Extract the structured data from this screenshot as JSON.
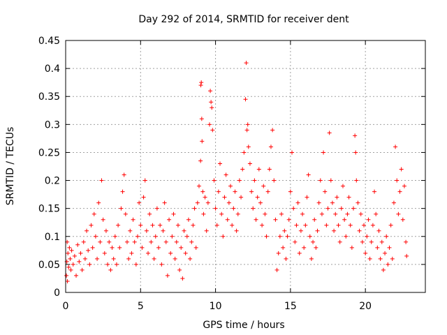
{
  "chart_data": {
    "type": "scatter",
    "title": "Day 292 of 2014, SRMTID for receiver dent",
    "xlabel": "GPS time / hours",
    "ylabel": "SRMTID / TECUs",
    "xlim": [
      0,
      24
    ],
    "ylim": [
      0,
      0.45
    ],
    "xticks": [
      0,
      5,
      10,
      15,
      20
    ],
    "xtick_labels": [
      "0",
      "5",
      "10",
      "15",
      "20"
    ],
    "yticks": [
      0,
      0.05,
      0.1,
      0.15,
      0.2,
      0.25,
      0.3,
      0.35,
      0.4,
      0.45
    ],
    "ytick_labels": [
      "0",
      "0.05",
      "0.1",
      "0.15",
      "0.2",
      "0.25",
      "0.3",
      "0.35",
      "0.4",
      "0.45"
    ],
    "grid": true,
    "marker": "+",
    "color": "#ff0000",
    "series": [
      {
        "name": "SRMTID",
        "points": [
          [
            0.05,
            0.03
          ],
          [
            0.08,
            0.055
          ],
          [
            0.1,
            0.09
          ],
          [
            0.12,
            0.02
          ],
          [
            0.15,
            0.07
          ],
          [
            0.2,
            0.045
          ],
          [
            0.25,
            0.08
          ],
          [
            0.3,
            0.06
          ],
          [
            0.35,
            0.04
          ],
          [
            0.4,
            0.075
          ],
          [
            0.5,
            0.05
          ],
          [
            0.6,
            0.065
          ],
          [
            0.7,
            0.03
          ],
          [
            0.8,
            0.085
          ],
          [
            0.9,
            0.055
          ],
          [
            1.0,
            0.07
          ],
          [
            1.1,
            0.04
          ],
          [
            1.2,
            0.09
          ],
          [
            1.3,
            0.06
          ],
          [
            1.4,
            0.11
          ],
          [
            1.5,
            0.075
          ],
          [
            1.6,
            0.05
          ],
          [
            1.7,
            0.12
          ],
          [
            1.8,
            0.08
          ],
          [
            1.9,
            0.14
          ],
          [
            2.0,
            0.1
          ],
          [
            2.1,
            0.06
          ],
          [
            2.2,
            0.16
          ],
          [
            2.3,
            0.09
          ],
          [
            2.4,
            0.2
          ],
          [
            2.5,
            0.13
          ],
          [
            2.6,
            0.07
          ],
          [
            2.7,
            0.11
          ],
          [
            2.8,
            0.05
          ],
          [
            2.9,
            0.09
          ],
          [
            3.0,
            0.04
          ],
          [
            3.1,
            0.08
          ],
          [
            3.2,
            0.06
          ],
          [
            3.3,
            0.1
          ],
          [
            3.4,
            0.05
          ],
          [
            3.5,
            0.12
          ],
          [
            3.6,
            0.08
          ],
          [
            3.7,
            0.15
          ],
          [
            3.8,
            0.18
          ],
          [
            3.9,
            0.21
          ],
          [
            4.0,
            0.14
          ],
          [
            4.1,
            0.09
          ],
          [
            4.2,
            0.06
          ],
          [
            4.3,
            0.11
          ],
          [
            4.4,
            0.07
          ],
          [
            4.5,
            0.13
          ],
          [
            4.6,
            0.09
          ],
          [
            4.7,
            0.05
          ],
          [
            4.8,
            0.1
          ],
          [
            4.9,
            0.16
          ],
          [
            5.0,
            0.12
          ],
          [
            5.1,
            0.08
          ],
          [
            5.2,
            0.17
          ],
          [
            5.3,
            0.2
          ],
          [
            5.4,
            0.11
          ],
          [
            5.5,
            0.07
          ],
          [
            5.6,
            0.14
          ],
          [
            5.7,
            0.09
          ],
          [
            5.8,
            0.12
          ],
          [
            5.9,
            0.06
          ],
          [
            6.0,
            0.1
          ],
          [
            6.1,
            0.15
          ],
          [
            6.2,
            0.08
          ],
          [
            6.3,
            0.12
          ],
          [
            6.4,
            0.05
          ],
          [
            6.5,
            0.11
          ],
          [
            6.6,
            0.16
          ],
          [
            6.7,
            0.09
          ],
          [
            6.8,
            0.03
          ],
          [
            6.9,
            0.13
          ],
          [
            7.0,
            0.07
          ],
          [
            7.1,
            0.1
          ],
          [
            7.2,
            0.14
          ],
          [
            7.3,
            0.06
          ],
          [
            7.4,
            0.09
          ],
          [
            7.5,
            0.12
          ],
          [
            7.6,
            0.04
          ],
          [
            7.7,
            0.08
          ],
          [
            7.8,
            0.025
          ],
          [
            7.9,
            0.11
          ],
          [
            8.0,
            0.07
          ],
          [
            8.1,
            0.1
          ],
          [
            8.2,
            0.13
          ],
          [
            8.3,
            0.06
          ],
          [
            8.4,
            0.09
          ],
          [
            8.5,
            0.12
          ],
          [
            8.6,
            0.15
          ],
          [
            8.7,
            0.08
          ],
          [
            8.8,
            0.16
          ],
          [
            8.9,
            0.19
          ],
          [
            9.0,
            0.235
          ],
          [
            9.02,
            0.37
          ],
          [
            9.05,
            0.375
          ],
          [
            9.08,
            0.31
          ],
          [
            9.1,
            0.27
          ],
          [
            9.15,
            0.18
          ],
          [
            9.2,
            0.14
          ],
          [
            9.3,
            0.17
          ],
          [
            9.4,
            0.11
          ],
          [
            9.5,
            0.16
          ],
          [
            9.6,
            0.3
          ],
          [
            9.65,
            0.36
          ],
          [
            9.7,
            0.34
          ],
          [
            9.75,
            0.33
          ],
          [
            9.8,
            0.29
          ],
          [
            9.9,
            0.2
          ],
          [
            10.0,
            0.15
          ],
          [
            10.1,
            0.12
          ],
          [
            10.2,
            0.18
          ],
          [
            10.3,
            0.23
          ],
          [
            10.4,
            0.14
          ],
          [
            10.5,
            0.1
          ],
          [
            10.6,
            0.17
          ],
          [
            10.7,
            0.21
          ],
          [
            10.8,
            0.13
          ],
          [
            10.9,
            0.16
          ],
          [
            11.0,
            0.19
          ],
          [
            11.1,
            0.12
          ],
          [
            11.2,
            0.15
          ],
          [
            11.3,
            0.18
          ],
          [
            11.4,
            0.11
          ],
          [
            11.5,
            0.14
          ],
          [
            11.6,
            0.2
          ],
          [
            11.7,
            0.17
          ],
          [
            11.8,
            0.22
          ],
          [
            11.9,
            0.25
          ],
          [
            12.0,
            0.345
          ],
          [
            12.05,
            0.41
          ],
          [
            12.1,
            0.29
          ],
          [
            12.15,
            0.3
          ],
          [
            12.2,
            0.26
          ],
          [
            12.3,
            0.23
          ],
          [
            12.4,
            0.18
          ],
          [
            12.5,
            0.15
          ],
          [
            12.6,
            0.2
          ],
          [
            12.7,
            0.13
          ],
          [
            12.8,
            0.17
          ],
          [
            12.9,
            0.22
          ],
          [
            13.0,
            0.16
          ],
          [
            13.1,
            0.12
          ],
          [
            13.2,
            0.19
          ],
          [
            13.3,
            0.14
          ],
          [
            13.4,
            0.1
          ],
          [
            13.5,
            0.18
          ],
          [
            13.6,
            0.22
          ],
          [
            13.7,
            0.26
          ],
          [
            13.8,
            0.29
          ],
          [
            13.9,
            0.2
          ],
          [
            14.0,
            0.13
          ],
          [
            14.1,
            0.04
          ],
          [
            14.2,
            0.07
          ],
          [
            14.3,
            0.1
          ],
          [
            14.4,
            0.14
          ],
          [
            14.5,
            0.08
          ],
          [
            14.6,
            0.11
          ],
          [
            14.7,
            0.06
          ],
          [
            14.8,
            0.1
          ],
          [
            14.9,
            0.13
          ],
          [
            15.0,
            0.18
          ],
          [
            15.1,
            0.25
          ],
          [
            15.2,
            0.15
          ],
          [
            15.3,
            0.09
          ],
          [
            15.4,
            0.12
          ],
          [
            15.5,
            0.16
          ],
          [
            15.6,
            0.07
          ],
          [
            15.7,
            0.11
          ],
          [
            15.8,
            0.14
          ],
          [
            15.9,
            0.08
          ],
          [
            16.0,
            0.12
          ],
          [
            16.1,
            0.17
          ],
          [
            16.2,
            0.21
          ],
          [
            16.3,
            0.1
          ],
          [
            16.4,
            0.06
          ],
          [
            16.5,
            0.09
          ],
          [
            16.6,
            0.13
          ],
          [
            16.7,
            0.08
          ],
          [
            16.8,
            0.11
          ],
          [
            16.9,
            0.16
          ],
          [
            17.0,
            0.2
          ],
          [
            17.1,
            0.14
          ],
          [
            17.2,
            0.25
          ],
          [
            17.3,
            0.18
          ],
          [
            17.4,
            0.12
          ],
          [
            17.5,
            0.15
          ],
          [
            17.6,
            0.285
          ],
          [
            17.7,
            0.2
          ],
          [
            17.8,
            0.16
          ],
          [
            17.9,
            0.11
          ],
          [
            18.0,
            0.14
          ],
          [
            18.1,
            0.17
          ],
          [
            18.2,
            0.12
          ],
          [
            18.3,
            0.09
          ],
          [
            18.4,
            0.15
          ],
          [
            18.5,
            0.19
          ],
          [
            18.6,
            0.13
          ],
          [
            18.7,
            0.1
          ],
          [
            18.8,
            0.14
          ],
          [
            18.9,
            0.17
          ],
          [
            19.0,
            0.12
          ],
          [
            19.1,
            0.08
          ],
          [
            19.2,
            0.15
          ],
          [
            19.3,
            0.28
          ],
          [
            19.35,
            0.25
          ],
          [
            19.4,
            0.2
          ],
          [
            19.5,
            0.16
          ],
          [
            19.6,
            0.11
          ],
          [
            19.7,
            0.14
          ],
          [
            19.8,
            0.09
          ],
          [
            19.9,
            0.12
          ],
          [
            20.0,
            0.07
          ],
          [
            20.1,
            0.1
          ],
          [
            20.2,
            0.13
          ],
          [
            20.3,
            0.06
          ],
          [
            20.4,
            0.09
          ],
          [
            20.5,
            0.12
          ],
          [
            20.6,
            0.18
          ],
          [
            20.7,
            0.14
          ],
          [
            20.8,
            0.08
          ],
          [
            20.9,
            0.11
          ],
          [
            21.0,
            0.06
          ],
          [
            21.1,
            0.09
          ],
          [
            21.2,
            0.04
          ],
          [
            21.3,
            0.07
          ],
          [
            21.4,
            0.1
          ],
          [
            21.5,
            0.05
          ],
          [
            21.6,
            0.08
          ],
          [
            21.7,
            0.12
          ],
          [
            21.8,
            0.06
          ],
          [
            21.9,
            0.16
          ],
          [
            22.0,
            0.26
          ],
          [
            22.1,
            0.2
          ],
          [
            22.2,
            0.14
          ],
          [
            22.3,
            0.18
          ],
          [
            22.4,
            0.22
          ],
          [
            22.5,
            0.13
          ],
          [
            22.6,
            0.19
          ],
          [
            22.7,
            0.09
          ],
          [
            22.75,
            0.065
          ]
        ]
      }
    ]
  }
}
